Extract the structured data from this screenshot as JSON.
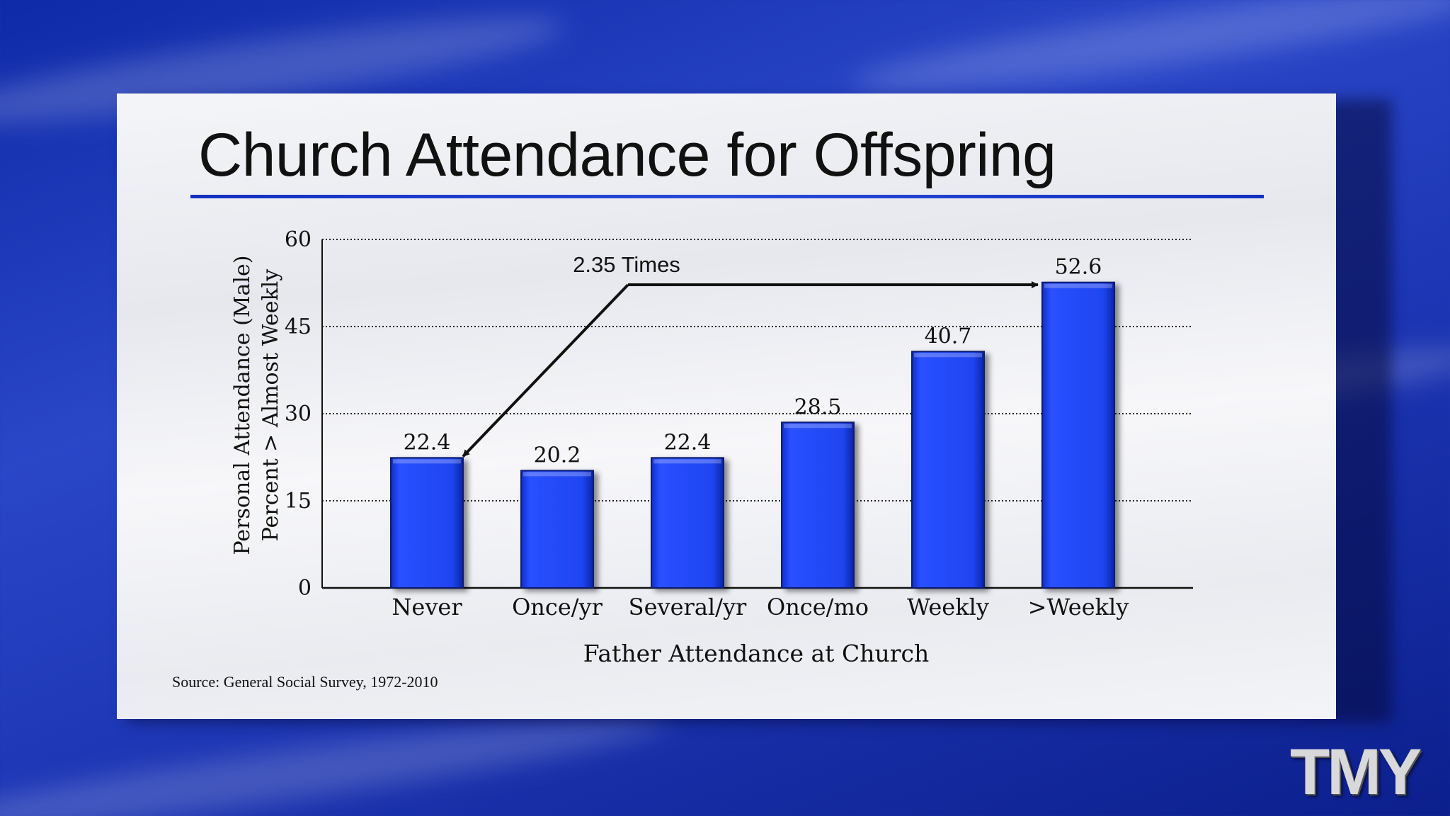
{
  "slide": {
    "title": "Church Attendance for Offspring",
    "source": "Source: General Social Survey, 1972-2010",
    "annotation": "2.35 Times",
    "logo_text": "TMY"
  },
  "colors": {
    "bar": "#1f44f0",
    "title_rule": "#1a36c8",
    "background": "#1d36b5"
  },
  "chart_data": {
    "type": "bar",
    "categories": [
      "Never",
      "Once/yr",
      "Several/yr",
      "Once/mo",
      "Weekly",
      ">Weekly"
    ],
    "values": [
      22.4,
      20.2,
      22.4,
      28.5,
      40.7,
      52.6
    ],
    "value_labels": [
      "22.4",
      "20.2",
      "22.4",
      "28.5",
      "40.7",
      "52.6"
    ],
    "title": "Church Attendance for Offspring",
    "xlabel": "Father Attendance at Church",
    "ylabel": [
      "Personal Attendance (Male)",
      "Percent > Almost Weekly"
    ],
    "ylim": [
      0,
      60
    ],
    "yticks": [
      "0",
      "15",
      "30",
      "45",
      "60"
    ],
    "ytick_values": [
      0,
      15,
      30,
      45,
      60
    ],
    "grid": "dotted horizontal",
    "annotation": {
      "text": "2.35 Times",
      "from_category": "Never",
      "to_category": ">Weekly"
    }
  }
}
